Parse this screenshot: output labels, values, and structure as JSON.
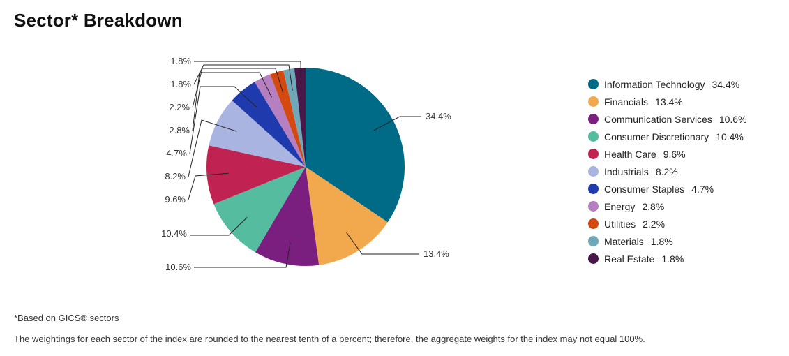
{
  "title": "Sector* Breakdown",
  "footnote": "*Based on GICS® sectors",
  "disclaimer": "The weightings for each sector of the index are rounded to the nearest tenth of a percent; therefore, the aggregate weights for the index may not equal 100%.",
  "chart_data": {
    "type": "pie",
    "slices": [
      {
        "label": "Information Technology",
        "value": 34.4,
        "display": "34.4%",
        "color": "#006b87"
      },
      {
        "label": "Financials",
        "value": 13.4,
        "display": "13.4%",
        "color": "#f2a84d"
      },
      {
        "label": "Communication Services",
        "value": 10.6,
        "display": "10.6%",
        "color": "#7a1f80"
      },
      {
        "label": "Consumer Discretionary",
        "value": 10.4,
        "display": "10.4%",
        "color": "#55bca0"
      },
      {
        "label": "Health Care",
        "value": 9.6,
        "display": "9.6%",
        "color": "#c02352"
      },
      {
        "label": "Industrials",
        "value": 8.2,
        "display": "8.2%",
        "color": "#a9b4e0"
      },
      {
        "label": "Consumer Staples",
        "value": 4.7,
        "display": "4.7%",
        "color": "#1f3aad"
      },
      {
        "label": "Energy",
        "value": 2.8,
        "display": "2.8%",
        "color": "#b67fc0"
      },
      {
        "label": "Utilities",
        "value": 2.2,
        "display": "2.2%",
        "color": "#d4490f"
      },
      {
        "label": "Materials",
        "value": 1.8,
        "display": "1.8%",
        "color": "#6fa9b9"
      },
      {
        "label": "Real Estate",
        "value": 1.8,
        "display": "1.8%",
        "color": "#4a1848"
      }
    ]
  }
}
